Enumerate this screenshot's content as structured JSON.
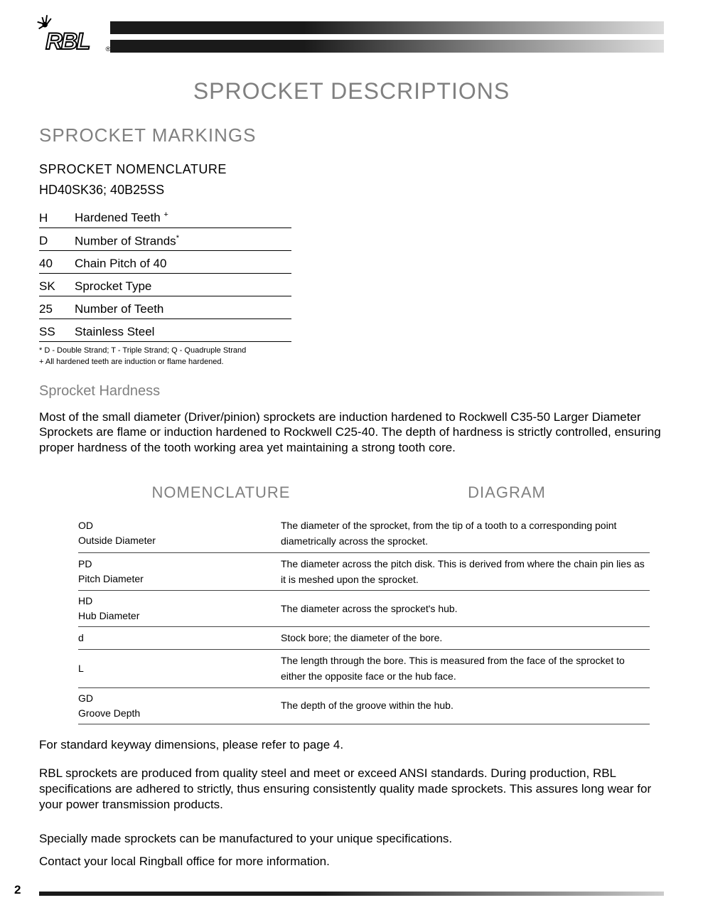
{
  "logo_text": "RBL",
  "main_title": "SPROCKET DESCRIPTIONS",
  "markings": {
    "section_title": "SPROCKET MARKINGS",
    "nomenclature_label": "SPROCKET NOMENCLATURE",
    "example": "HD40SK36;  40B25SS",
    "rows": [
      {
        "code": "H",
        "desc": "Hardened Teeth ",
        "sup": "+"
      },
      {
        "code": "D",
        "desc": "Number of Strands",
        "sup": "*"
      },
      {
        "code": "40",
        "desc": "Chain Pitch of 40",
        "sup": ""
      },
      {
        "code": "SK",
        "desc": "Sprocket Type",
        "sup": ""
      },
      {
        "code": "25",
        "desc": "Number of Teeth",
        "sup": ""
      },
      {
        "code": "SS",
        "desc": "Stainless Steel",
        "sup": ""
      }
    ],
    "footnote1": "* D -  Double Strand; T -  Triple Strand; Q -  Quadruple Strand",
    "footnote2": "+ All hardened teeth are induction or flame hardened."
  },
  "hardness": {
    "title": "Sprocket Hardness",
    "body": "Most  of the small diameter (Driver/pinion) sprockets are induction hardened to Rockwell C35-50 Larger Diameter Sprockets are flame or induction hardened to Rockwell C25-40. The depth of hardness is strictly controlled, ensuring proper hardness of the tooth working area yet maintaining a strong tooth core."
  },
  "nomdiag": {
    "left_header": "NOMENCLATURE",
    "right_header": "DIAGRAM",
    "rows": [
      {
        "code": "OD",
        "name": "Outside Diameter",
        "desc": "The diameter of the sprocket, from the tip of a tooth to a corresponding point diametrically across the sprocket."
      },
      {
        "code": "PD",
        "name": "Pitch Diameter",
        "desc": "The diameter across the pitch disk.  This is derived from where the chain pin lies as it is meshed upon the sprocket."
      },
      {
        "code": "HD",
        "name": "Hub Diameter",
        "desc": "The diameter across the sprocket's hub."
      },
      {
        "code": "d",
        "name": "",
        "desc": "Stock bore; the diameter of the bore."
      },
      {
        "code": "L",
        "name": "",
        "desc": "The length through the bore.  This is measured from the face of the sprocket to either the opposite face or the hub face."
      },
      {
        "code": "GD",
        "name": "Groove Depth",
        "desc": "The depth of the groove within the hub."
      }
    ]
  },
  "para1": "For standard keyway dimensions, please refer to page 4.",
  "para2": "RBL sprockets are produced from quality steel and meet or exceed ANSI standards.  During production, RBL specifications are adhered to strictly, thus ensuring consistently quality made sprockets.  This assures long wear for your power transmission products.",
  "para3": "Specially made sprockets can be manufactured to your unique specifications.",
  "para4": "Contact your local Ringball office for more information.",
  "page_number": "2"
}
